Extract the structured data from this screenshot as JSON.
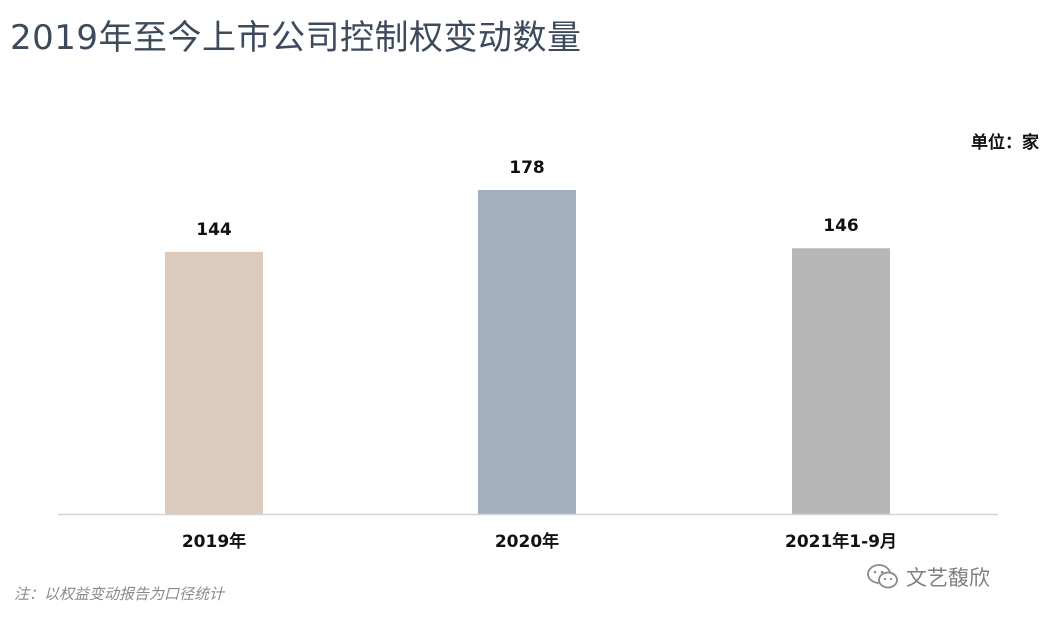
{
  "title": "2019年至今上市公司控制权变动数量",
  "unit_label": "单位：家",
  "note": "注：以权益变动报告为口径统计",
  "watermark": {
    "text": "文艺馥欣",
    "icon": "wechat-icon"
  },
  "chart_data": {
    "type": "bar",
    "title": "2019年至今上市公司控制权变动数量",
    "categories": [
      "2019年",
      "2020年",
      "2021年1-9月"
    ],
    "values": [
      144,
      178,
      146
    ],
    "colors": [
      "#dccbbd",
      "#a3b0c0",
      "#b7b7b7"
    ],
    "ylim": [
      0,
      200
    ],
    "grid": false,
    "data_labels": true,
    "unit": "家"
  }
}
